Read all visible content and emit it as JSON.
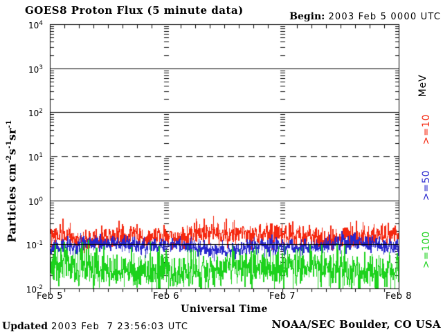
{
  "header": {
    "title": "GOES8 Proton Flux (5 minute data)",
    "begin_label": "Begin:",
    "begin_value": "2003 Feb 5 0000 UTC"
  },
  "footer": {
    "updated_label": "Updated",
    "updated_value": "2003 Feb  7 23:56:03 UTC",
    "credit": "NOAA/SEC Boulder, CO USA"
  },
  "chart_data": {
    "type": "line",
    "title": "GOES8 Proton Flux (5 minute data)",
    "begin": "2003 Feb 5 0000 UTC",
    "xlabel": "Universal Time",
    "ylabel": "Particles cm-2 s-1 sr-1",
    "ylabel_parts": [
      [
        "t",
        "Particles cm"
      ],
      [
        "s",
        "-2"
      ],
      [
        "t",
        "s"
      ],
      [
        "s",
        "-1"
      ],
      [
        "t",
        "sr"
      ],
      [
        "s",
        "-1"
      ]
    ],
    "right_axis_label": "MeV",
    "x_ticks": [
      "Feb 5",
      "Feb 6",
      "Feb 7",
      "Feb 8"
    ],
    "x_minor_ticks_per_day": 8,
    "y_tick_exponents": [
      4,
      3,
      2,
      1,
      0,
      -1,
      -2
    ],
    "ylim": [
      0.01,
      10000
    ],
    "x_range_days": 3,
    "samples_per_day": 288,
    "grid": {
      "solid_exponents": [
        3,
        2,
        0,
        -1
      ],
      "dashed_exponents": [
        1
      ],
      "day_gridline_style": "log-minor-tick-dashes",
      "day_gridlines_at": [
        "Feb 6",
        "Feb 7"
      ]
    },
    "legend_position": "right",
    "series": [
      {
        "name": "Protons >=10 MeV",
        "label": ">=10",
        "color": "#f5270f",
        "log10_mean": -0.8,
        "log10_sigma": 0.13,
        "log10_clamp": [
          -1.18,
          -0.33
        ],
        "spike_prob": 0.04,
        "spike_add": 0.15,
        "approx_range_flux": [
          0.07,
          0.45
        ],
        "seed": 101
      },
      {
        "name": "Protons >=50 MeV",
        "label": ">=50",
        "color": "#2726cd",
        "log10_mean": -1.03,
        "log10_sigma": 0.095,
        "log10_clamp": [
          -1.38,
          -0.68
        ],
        "spike_prob": 0,
        "spike_add": 0,
        "approx_range_flux": [
          0.045,
          0.2
        ],
        "seed": 202
      },
      {
        "name": "Protons >=100 MeV",
        "label": ">=100",
        "color": "#1cd21c",
        "log10_mean": -1.55,
        "log10_sigma": 0.216,
        "log10_clamp": [
          -2.0,
          -0.88
        ],
        "spike_prob": 0,
        "spike_add": 0,
        "approx_range_flux": [
          0.01,
          0.13
        ],
        "seed": 303
      }
    ]
  }
}
